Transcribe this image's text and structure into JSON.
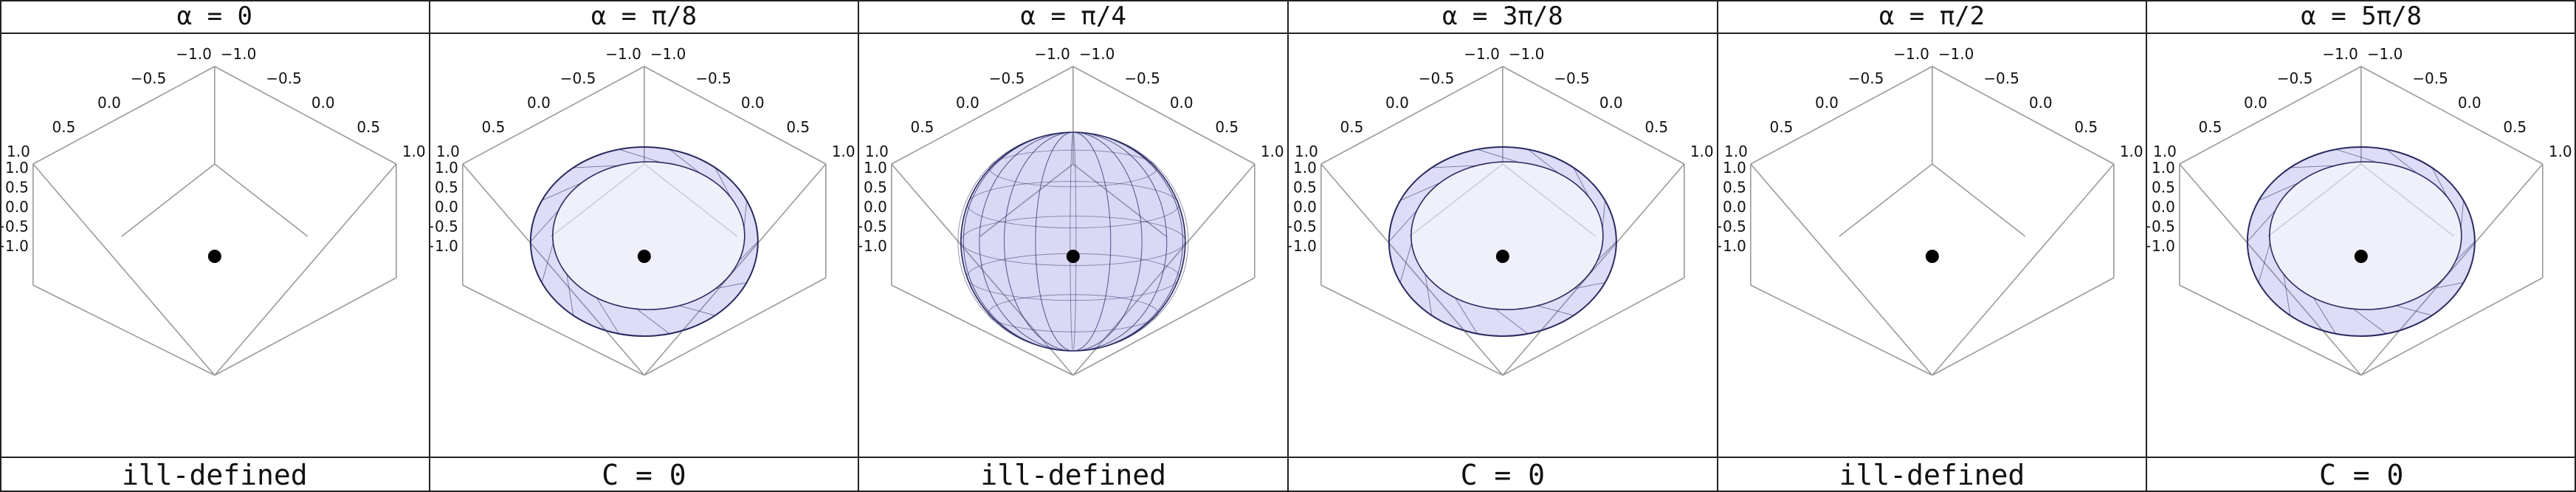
{
  "panels": [
    {
      "alpha_label": "α = 0",
      "footer": "ill-defined",
      "surface": "none"
    },
    {
      "alpha_label": "α = π/8",
      "footer": "C = 0",
      "surface": "ring"
    },
    {
      "alpha_label": "α = π/4",
      "footer": "ill-defined",
      "surface": "sphere"
    },
    {
      "alpha_label": "α = 3π/8",
      "footer": "C = 0",
      "surface": "ring"
    },
    {
      "alpha_label": "α = π/2",
      "footer": "ill-defined",
      "surface": "none"
    },
    {
      "alpha_label": "α = 5π/8",
      "footer": "C = 0",
      "surface": "ring"
    }
  ],
  "axis_ticks_top_left": [
    "1.0",
    "0.5",
    "0.0",
    "−0.5",
    "−1.0"
  ],
  "axis_ticks_top_right": [
    "−1.0",
    "−0.5",
    "0.0",
    "0.5",
    "1.0"
  ],
  "axis_ticks_vertical": [
    "1.0",
    "0.5",
    "0.0",
    "−0.5",
    "−1.0"
  ],
  "colors": {
    "surface": "#7878e0",
    "edge": "#2a2a60",
    "box": "#9a9a9a",
    "dot": "#000000"
  }
}
